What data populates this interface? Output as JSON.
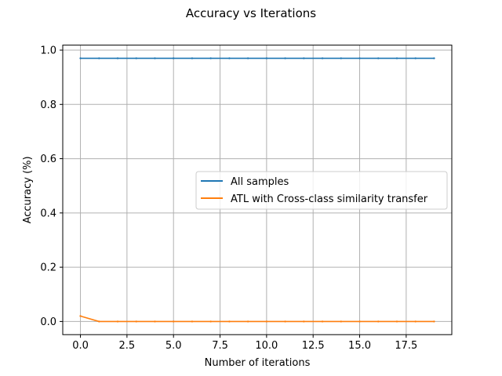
{
  "chart_data": {
    "type": "line",
    "title": "Accuracy vs Iterations",
    "xlabel": "Number of iterations",
    "ylabel": "Accuracy (%)",
    "xlim": [
      -0.95,
      19.95
    ],
    "ylim": [
      -0.0485,
      1.0185
    ],
    "xticks": [
      0,
      2.5,
      5,
      7.5,
      10,
      12.5,
      15,
      17.5
    ],
    "xtick_labels": [
      "0.0",
      "2.5",
      "5.0",
      "7.5",
      "10.0",
      "12.5",
      "15.0",
      "17.5"
    ],
    "yticks": [
      0,
      0.2,
      0.4,
      0.6,
      0.8,
      1.0
    ],
    "ytick_labels": [
      "0.0",
      "0.2",
      "0.4",
      "0.6",
      "0.8",
      "1.0"
    ],
    "grid": true,
    "legend_position": "center-right",
    "x": [
      0,
      1,
      2,
      3,
      4,
      5,
      6,
      7,
      8,
      9,
      10,
      11,
      12,
      13,
      14,
      15,
      16,
      17,
      18,
      19
    ],
    "series": [
      {
        "name": "All samples",
        "color": "#1f77b4",
        "values": [
          0.97,
          0.97,
          0.97,
          0.97,
          0.97,
          0.97,
          0.97,
          0.97,
          0.97,
          0.97,
          0.97,
          0.97,
          0.97,
          0.97,
          0.97,
          0.97,
          0.97,
          0.97,
          0.97,
          0.97
        ]
      },
      {
        "name": "ATL with Cross-class similarity transfer",
        "color": "#ff7f0e",
        "values": [
          0.02,
          0.0,
          0.0,
          0.0,
          0.0,
          0.0,
          0.0,
          0.0,
          0.0,
          0.0,
          0.0,
          0.0,
          0.0,
          0.0,
          0.0,
          0.0,
          0.0,
          0.0,
          0.0,
          0.0
        ]
      }
    ]
  }
}
